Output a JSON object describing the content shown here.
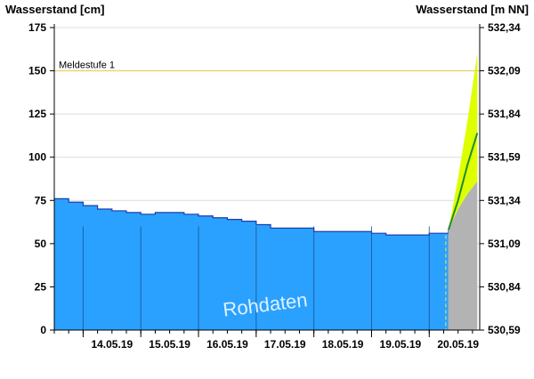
{
  "chart_data": {
    "type": "area",
    "left_axis": {
      "label": "Wasserstand [cm]",
      "ylim": [
        0,
        175
      ],
      "ticks": [
        0,
        25,
        50,
        75,
        100,
        125,
        150,
        175
      ]
    },
    "right_axis": {
      "label": "Wasserstand [m NN]",
      "ticks": [
        "530,59",
        "530,84",
        "531,09",
        "531,34",
        "531,59",
        "531,84",
        "532,09",
        "532,34"
      ]
    },
    "x_axis": {
      "start": "13.05.19 12:00",
      "end": "20.05.19 21:00",
      "tick_labels": [
        "14.05.19",
        "15.05.19",
        "16.05.19",
        "17.05.19",
        "18.05.19",
        "19.05.19",
        "20.05.19"
      ]
    },
    "grid": true,
    "reference_lines": [
      {
        "label": "Meldestufe 1",
        "value": 150,
        "color": "#f2c94c"
      }
    ],
    "annotation": "Rohdaten",
    "series": [
      {
        "kind": "measured",
        "color": "#2aa1ff",
        "points": [
          [
            "13.05.19 12:00",
            76
          ],
          [
            "13.05.19 18:00",
            74
          ],
          [
            "14.05.19 00:00",
            72
          ],
          [
            "14.05.19 06:00",
            70
          ],
          [
            "14.05.19 12:00",
            69
          ],
          [
            "14.05.19 18:00",
            68
          ],
          [
            "15.05.19 00:00",
            67
          ],
          [
            "15.05.19 06:00",
            68
          ],
          [
            "15.05.19 12:00",
            68
          ],
          [
            "15.05.19 18:00",
            67
          ],
          [
            "16.05.19 00:00",
            66
          ],
          [
            "16.05.19 06:00",
            65
          ],
          [
            "16.05.19 12:00",
            64
          ],
          [
            "16.05.19 18:00",
            63
          ],
          [
            "17.05.19 00:00",
            61
          ],
          [
            "17.05.19 06:00",
            59
          ],
          [
            "17.05.19 12:00",
            59
          ],
          [
            "17.05.19 18:00",
            59
          ],
          [
            "18.05.19 00:00",
            57
          ],
          [
            "18.05.19 06:00",
            57
          ],
          [
            "18.05.19 12:00",
            57
          ],
          [
            "18.05.19 18:00",
            57
          ],
          [
            "19.05.19 00:00",
            56
          ],
          [
            "19.05.19 06:00",
            55
          ],
          [
            "19.05.19 12:00",
            55
          ],
          [
            "19.05.19 18:00",
            55
          ],
          [
            "20.05.19 00:00",
            56
          ],
          [
            "20.05.19 06:00",
            56
          ],
          [
            "20.05.19 08:00",
            58
          ]
        ]
      },
      {
        "kind": "forecast",
        "color": "#1e8c2c",
        "points": [
          [
            "20.05.19 08:00",
            58
          ],
          [
            "20.05.19 12:00",
            75
          ],
          [
            "20.05.19 16:00",
            96
          ],
          [
            "20.05.19 20:00",
            114
          ]
        ]
      },
      {
        "kind": "forecast-upper",
        "color": "#ddff00",
        "points": [
          [
            "20.05.19 08:00",
            58
          ],
          [
            "20.05.19 12:00",
            88
          ],
          [
            "20.05.19 16:00",
            122
          ],
          [
            "20.05.19 20:00",
            160
          ]
        ]
      },
      {
        "kind": "forecast-lower",
        "color": "#b3b3b3",
        "points": [
          [
            "20.05.19 08:00",
            58
          ],
          [
            "20.05.19 12:00",
            70
          ],
          [
            "20.05.19 16:00",
            79
          ],
          [
            "20.05.19 20:00",
            86
          ]
        ]
      }
    ]
  }
}
